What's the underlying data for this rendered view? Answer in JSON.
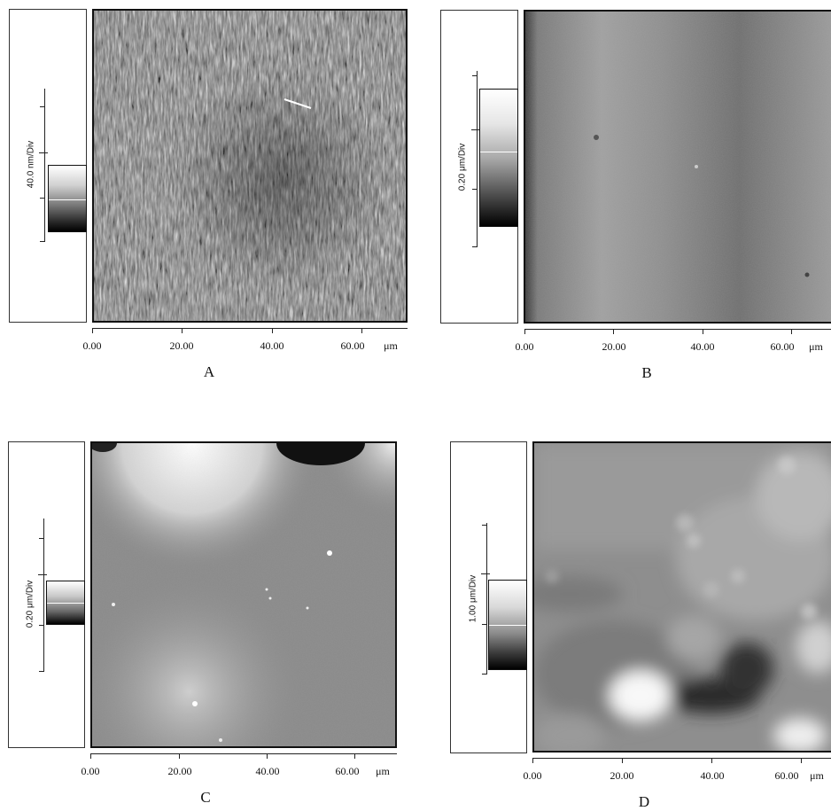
{
  "panels": [
    {
      "id": "A",
      "caption": "A",
      "scale_label": "40.0 nm/Div",
      "x_ticks": [
        "0.00",
        "20.00",
        "40.00",
        "60.00"
      ],
      "x_unit": "μm"
    },
    {
      "id": "B",
      "caption": "B",
      "scale_label": "0.20 μm/Div",
      "x_ticks": [
        "0.00",
        "20.00",
        "40.00",
        "60.00"
      ],
      "x_unit": "μm"
    },
    {
      "id": "C",
      "caption": "C",
      "scale_label": "0.20 μm/Div",
      "x_ticks": [
        "0.00",
        "20.00",
        "40.00",
        "60.00"
      ],
      "x_unit": "μm"
    },
    {
      "id": "D",
      "caption": "D",
      "scale_label": "1.00 μm/Div",
      "x_ticks": [
        "0.00",
        "20.00",
        "40.00",
        "60.00"
      ],
      "x_unit": "μm"
    }
  ]
}
